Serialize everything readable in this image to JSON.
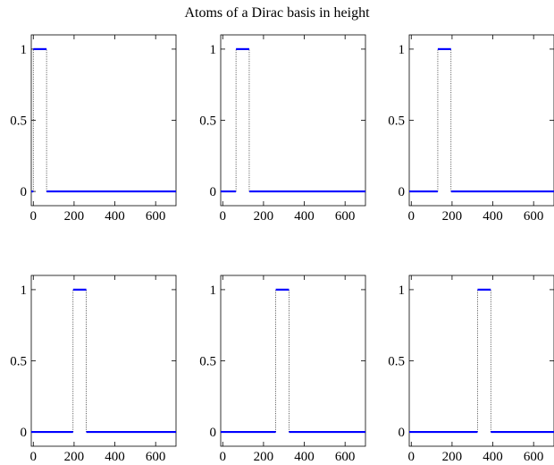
{
  "title": "Atoms of a Dirac basis in height",
  "colors": {
    "step": "#0000ff",
    "transition": "#000000",
    "axes": "#000000"
  },
  "chart_data": [
    {
      "type": "line",
      "title": "",
      "xlabel": "",
      "ylabel": "",
      "xlim": [
        -10,
        700
      ],
      "ylim": [
        -0.1,
        1.1
      ],
      "xticks": [
        0,
        200,
        400,
        600
      ],
      "xtick_labels": [
        "0",
        "200",
        "400",
        "600"
      ],
      "yticks": [
        0,
        0.5,
        1
      ],
      "ytick_labels": [
        "0",
        "0.5",
        "1"
      ],
      "grid": false,
      "atom": {
        "start": 0,
        "end": 65,
        "height": 1
      }
    },
    {
      "type": "line",
      "title": "",
      "xlabel": "",
      "ylabel": "",
      "xlim": [
        -10,
        700
      ],
      "ylim": [
        -0.1,
        1.1
      ],
      "xticks": [
        0,
        200,
        400,
        600
      ],
      "xtick_labels": [
        "0",
        "200",
        "400",
        "600"
      ],
      "yticks": [
        0,
        0.5,
        1
      ],
      "ytick_labels": [
        "0",
        "0.5",
        "1"
      ],
      "grid": false,
      "atom": {
        "start": 65,
        "end": 130,
        "height": 1
      }
    },
    {
      "type": "line",
      "title": "",
      "xlabel": "",
      "ylabel": "",
      "xlim": [
        -10,
        700
      ],
      "ylim": [
        -0.1,
        1.1
      ],
      "xticks": [
        0,
        200,
        400,
        600
      ],
      "xtick_labels": [
        "0",
        "200",
        "400",
        "600"
      ],
      "yticks": [
        0,
        0.5,
        1
      ],
      "ytick_labels": [
        "0",
        "0.5",
        "1"
      ],
      "grid": false,
      "atom": {
        "start": 130,
        "end": 195,
        "height": 1
      }
    },
    {
      "type": "line",
      "title": "",
      "xlabel": "",
      "ylabel": "",
      "xlim": [
        -10,
        700
      ],
      "ylim": [
        -0.1,
        1.1
      ],
      "xticks": [
        0,
        200,
        400,
        600
      ],
      "xtick_labels": [
        "0",
        "200",
        "400",
        "600"
      ],
      "yticks": [
        0,
        0.5,
        1
      ],
      "ytick_labels": [
        "0",
        "0.5",
        "1"
      ],
      "grid": false,
      "atom": {
        "start": 195,
        "end": 260,
        "height": 1
      }
    },
    {
      "type": "line",
      "title": "",
      "xlabel": "",
      "ylabel": "",
      "xlim": [
        -10,
        700
      ],
      "ylim": [
        -0.1,
        1.1
      ],
      "xticks": [
        0,
        200,
        400,
        600
      ],
      "xtick_labels": [
        "0",
        "200",
        "400",
        "600"
      ],
      "yticks": [
        0,
        0.5,
        1
      ],
      "ytick_labels": [
        "0",
        "0.5",
        "1"
      ],
      "grid": false,
      "atom": {
        "start": 260,
        "end": 325,
        "height": 1
      }
    },
    {
      "type": "line",
      "title": "",
      "xlabel": "",
      "ylabel": "",
      "xlim": [
        -10,
        700
      ],
      "ylim": [
        -0.1,
        1.1
      ],
      "xticks": [
        0,
        200,
        400,
        600
      ],
      "xtick_labels": [
        "0",
        "200",
        "400",
        "600"
      ],
      "yticks": [
        0,
        0.5,
        1
      ],
      "ytick_labels": [
        "0",
        "0.5",
        "1"
      ],
      "grid": false,
      "atom": {
        "start": 325,
        "end": 390,
        "height": 1
      }
    }
  ]
}
